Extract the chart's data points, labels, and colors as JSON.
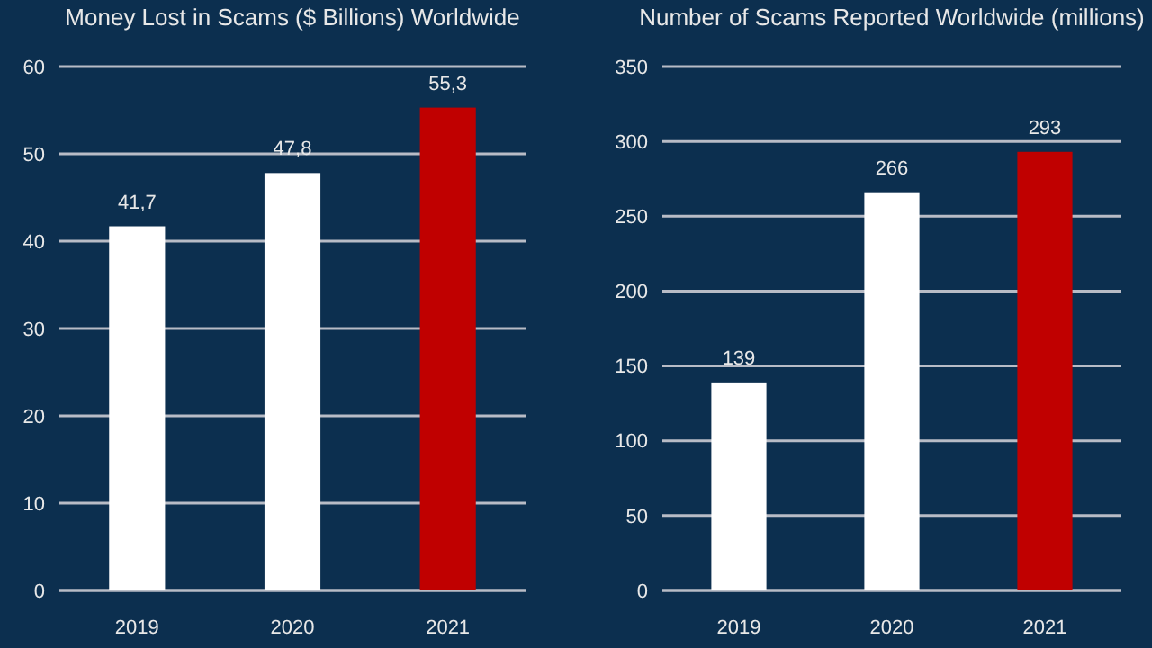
{
  "chart_data": [
    {
      "type": "bar",
      "title": "Money Lost in Scams ($ Billions) Worldwide",
      "categories": [
        "2019",
        "2020",
        "2021"
      ],
      "values": [
        41.7,
        47.8,
        55.3
      ],
      "colors": [
        "#ffffff",
        "#ffffff",
        "#c00000"
      ],
      "value_labels": [
        "41,7",
        "47,8",
        "55,3"
      ],
      "ylim": [
        0,
        60
      ],
      "yticks": [
        0,
        10,
        20,
        30,
        40,
        50,
        60
      ],
      "grid": "y"
    },
    {
      "type": "bar",
      "title": "Number of Scams Reported Worldwide (millions)",
      "categories": [
        "2019",
        "2020",
        "2021"
      ],
      "values": [
        139,
        266,
        293
      ],
      "colors": [
        "#ffffff",
        "#ffffff",
        "#c00000"
      ],
      "value_labels": [
        "139",
        "266",
        "293"
      ],
      "ylim": [
        0,
        350
      ],
      "yticks": [
        0,
        50,
        100,
        150,
        200,
        250,
        300,
        350
      ],
      "grid": "y"
    }
  ]
}
